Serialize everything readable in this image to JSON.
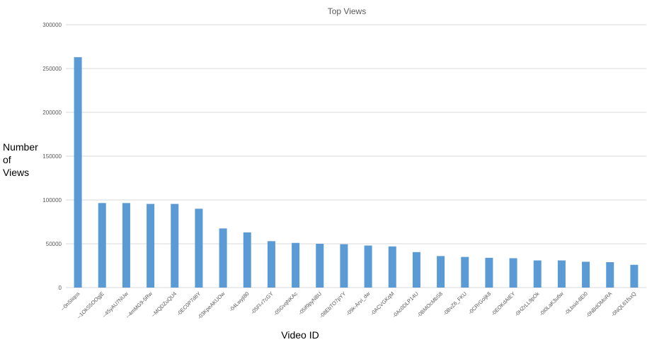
{
  "chart_data": {
    "type": "bar",
    "title": "Top Views",
    "xlabel": "Video ID",
    "ylabel_lines": [
      "Number",
      "of",
      "Views"
    ],
    "ylim": [
      0,
      300000
    ],
    "yticks": [
      "0",
      "50000",
      "100000",
      "150000",
      "200000",
      "250000",
      "300000"
    ],
    "grid": true,
    "colors": {
      "bar": "#5b9bd5",
      "grid": "#d9d9d9"
    },
    "categories": [
      "--0nSIiqos",
      "--1OkS5OOgjE",
      "--45yAU7NUw",
      "--4mMG9-5Rw",
      "--MQDZuQU4",
      "-0EC0P7d8Y",
      "-03KpeAKUOw",
      "-04Lwyjl80",
      "-05Fl-r7cGY",
      "-05GvqNKAc",
      "-05if9pyNBU",
      "-08EbTO7pYY",
      "-09k-Arvi_dw",
      "-0ACVGKqM",
      "-0Ac0DLP14U",
      "-0BMOcMbS8",
      "-0BvZ6_FKU",
      "-0CRrGoljk8",
      "-0EOKdAtEY",
      "-0HZrLL9pOk",
      "-0I0LaK3u6w",
      "-0Lbsid-8EI0",
      "-0NBdOMoRA",
      "-0NQL61fsxQ"
    ],
    "values": [
      263000,
      96500,
      96500,
      95500,
      95500,
      90000,
      67500,
      63000,
      53000,
      51000,
      50000,
      49500,
      48000,
      47000,
      40500,
      36000,
      35000,
      34000,
      33500,
      31000,
      31000,
      29500,
      29000,
      26000
    ]
  }
}
